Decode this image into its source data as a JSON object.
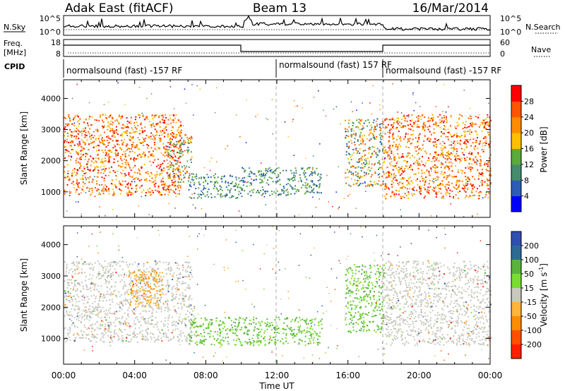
{
  "header": {
    "site": "Adak East (fitACF)",
    "beam": "Beam 13",
    "date": "16/Mar/2014"
  },
  "nsky_panel": {
    "left_label": "N.Sky",
    "right_label": "N.Search",
    "left_ticks": [
      "10^5",
      "10^0"
    ],
    "right_ticks": [
      "10^5",
      "10^0"
    ]
  },
  "freq_panel": {
    "left_label_1": "Freq.",
    "left_label_2": "[MHz]",
    "right_label": "Nave",
    "left_ticks": [
      "18",
      "8"
    ],
    "right_ticks": [
      "60",
      "0"
    ]
  },
  "cpid_panel": {
    "label": "CPID",
    "segments": [
      {
        "text": "normalsound (fast) -157 RF",
        "start_hour": 0
      },
      {
        "text": "normalsound (fast) 157 RF",
        "start_hour": 12
      },
      {
        "text": "normalsound (fast) -157 RF",
        "start_hour": 18
      }
    ]
  },
  "x_axis": {
    "label": "Time UT",
    "ticks": [
      "00:00",
      "04:00",
      "08:00",
      "12:00",
      "16:00",
      "20:00",
      "00:00"
    ],
    "range_hours": [
      0,
      24
    ]
  },
  "chart_data": [
    {
      "type": "heatmap",
      "name": "power",
      "ylabel": "Slant Range [km]",
      "yticks": [
        "1000",
        "2000",
        "3000",
        "4000"
      ],
      "ylim_km": [
        180,
        4600
      ],
      "colorbar": {
        "label": "Power [dB]",
        "ticks": [
          "4",
          "8",
          "12",
          "16",
          "20",
          "24",
          "28"
        ],
        "range": [
          0,
          32
        ],
        "colors": [
          "#0000ff",
          "#2c5cb4",
          "#468c6c",
          "#5aaa3c",
          "#ffc000",
          "#ff8c00",
          "#ff5500",
          "#ff0000"
        ]
      },
      "regions": [
        {
          "t_start": 0.0,
          "t_end": 6.6,
          "r_low": 900,
          "r_high": 3500,
          "level": "high",
          "values_db": [
            20,
            30
          ]
        },
        {
          "t_start": 5.8,
          "t_end": 7.2,
          "r_low": 1200,
          "r_high": 2900,
          "level": "mixed",
          "values_db": [
            10,
            24
          ]
        },
        {
          "t_start": 7.0,
          "t_end": 10.0,
          "r_low": 800,
          "r_high": 1600,
          "level": "low",
          "values_db": [
            4,
            14
          ]
        },
        {
          "t_start": 10.0,
          "t_end": 14.5,
          "r_low": 900,
          "r_high": 1800,
          "level": "low",
          "values_db": [
            4,
            14
          ]
        },
        {
          "t_start": 15.8,
          "t_end": 18.0,
          "r_low": 1200,
          "r_high": 3400,
          "level": "mixed",
          "values_db": [
            4,
            26
          ]
        },
        {
          "t_start": 18.0,
          "t_end": 24.0,
          "r_low": 800,
          "r_high": 3500,
          "level": "high",
          "values_db": [
            20,
            30
          ]
        }
      ]
    },
    {
      "type": "heatmap",
      "name": "velocity",
      "ylabel": "Slant Range [km]",
      "yticks": [
        "1000",
        "2000",
        "3000",
        "4000"
      ],
      "ylim_km": [
        180,
        4600
      ],
      "colorbar": {
        "label": "Velocity [m s^-1]",
        "ticks": [
          "200",
          "100",
          "50",
          "15",
          "-15",
          "-50",
          "-100",
          "-200"
        ],
        "range": [
          -250,
          250
        ],
        "colors": [
          "#3050b0",
          "#2d6a96",
          "#5ab43c",
          "#78dc32",
          "#c8c8be",
          "#ffb43c",
          "#ff8c00",
          "#ff5000",
          "#ff1e00"
        ]
      },
      "regions": [
        {
          "t_start": 0.0,
          "t_end": 7.2,
          "r_low": 900,
          "r_high": 3500,
          "level": "ground_scatter",
          "values_ms": [
            -15,
            15
          ]
        },
        {
          "t_start": 3.6,
          "t_end": 5.6,
          "r_low": 2000,
          "r_high": 3200,
          "level": "receding",
          "values_ms": [
            -100,
            -50
          ]
        },
        {
          "t_start": 7.0,
          "t_end": 14.5,
          "r_low": 800,
          "r_high": 1700,
          "level": "approaching",
          "values_ms": [
            15,
            100
          ]
        },
        {
          "t_start": 15.8,
          "t_end": 18.0,
          "r_low": 1200,
          "r_high": 3400,
          "level": "approaching",
          "values_ms": [
            15,
            100
          ]
        },
        {
          "t_start": 18.0,
          "t_end": 24.0,
          "r_low": 800,
          "r_high": 3500,
          "level": "ground_scatter",
          "values_ms": [
            -15,
            15
          ]
        }
      ]
    }
  ]
}
